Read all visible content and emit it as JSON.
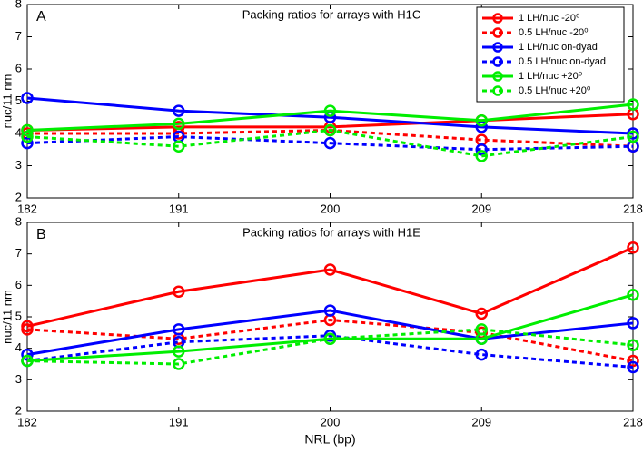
{
  "chart_data": [
    {
      "type": "line",
      "panel": "A",
      "title": "Packing ratios for arrays with H1C",
      "ylabel": "nuc/11 nm",
      "x": [
        182,
        191,
        200,
        209,
        218
      ],
      "xlim": [
        182,
        218
      ],
      "xticks": [
        182,
        191,
        200,
        209,
        218
      ],
      "ylim": [
        2,
        8
      ],
      "yticks": [
        2,
        3,
        4,
        5,
        6,
        7,
        8
      ],
      "legend": "upper right",
      "series": [
        {
          "name": "1 LH/nuc -20⁰",
          "color": "#ff0000",
          "style": "solid",
          "values": [
            4.1,
            4.2,
            4.2,
            4.4,
            4.6
          ]
        },
        {
          "name": "0.5 LH/nuc -20⁰",
          "color": "#ff0000",
          "style": "dashed",
          "values": [
            4.0,
            4.0,
            4.1,
            3.8,
            3.6
          ]
        },
        {
          "name": "1 LH/nuc on-dyad",
          "color": "#0000ff",
          "style": "solid",
          "values": [
            5.1,
            4.7,
            4.5,
            4.2,
            4.0
          ]
        },
        {
          "name": "0.5 LH/nuc on-dyad",
          "color": "#0000ff",
          "style": "dashed",
          "values": [
            3.7,
            3.9,
            3.7,
            3.5,
            3.6
          ]
        },
        {
          "name": "1 LH/nuc +20⁰",
          "color": "#00ee00",
          "style": "solid",
          "values": [
            4.1,
            4.3,
            4.7,
            4.4,
            4.9
          ]
        },
        {
          "name": "0.5 LH/nuc +20⁰",
          "color": "#00ee00",
          "style": "dashed",
          "values": [
            3.9,
            3.6,
            4.1,
            3.3,
            3.9
          ]
        }
      ]
    },
    {
      "type": "line",
      "panel": "B",
      "title": "Packing ratios for arrays with H1E",
      "ylabel": "nuc/11 nm",
      "xlabel": "NRL (bp)",
      "x": [
        182,
        191,
        200,
        209,
        218
      ],
      "xlim": [
        182,
        218
      ],
      "xticks": [
        182,
        191,
        200,
        209,
        218
      ],
      "ylim": [
        2,
        8
      ],
      "yticks": [
        2,
        3,
        4,
        5,
        6,
        7,
        8
      ],
      "series": [
        {
          "color": "#ff0000",
          "style": "solid",
          "values": [
            4.7,
            5.8,
            6.5,
            5.1,
            7.2
          ]
        },
        {
          "color": "#ff0000",
          "style": "dashed",
          "values": [
            4.6,
            4.3,
            4.9,
            4.5,
            3.6
          ]
        },
        {
          "color": "#0000ff",
          "style": "solid",
          "values": [
            3.8,
            4.6,
            5.2,
            4.3,
            4.8
          ]
        },
        {
          "color": "#0000ff",
          "style": "dashed",
          "values": [
            3.6,
            4.2,
            4.4,
            3.8,
            3.4
          ]
        },
        {
          "color": "#00ee00",
          "style": "solid",
          "values": [
            3.6,
            3.9,
            4.3,
            4.3,
            5.7
          ]
        },
        {
          "color": "#00ee00",
          "style": "dashed",
          "values": [
            3.6,
            3.5,
            4.3,
            4.6,
            4.1
          ]
        }
      ]
    }
  ]
}
